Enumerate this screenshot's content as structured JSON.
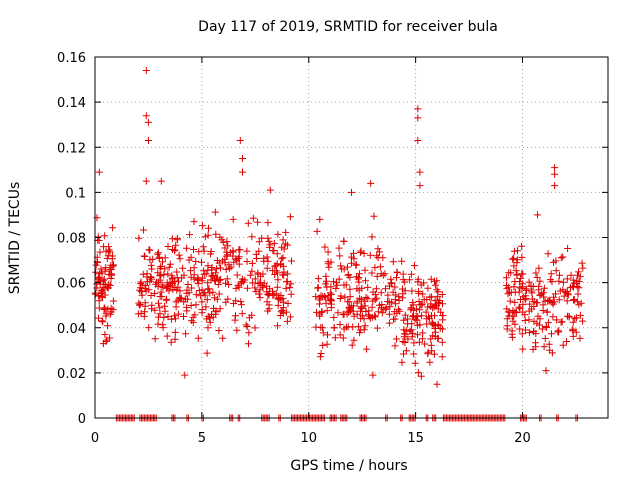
{
  "chart_data": {
    "type": "scatter",
    "title": "Day 117 of 2019, SRMTID for receiver bula",
    "xlabel": "GPS time / hours",
    "ylabel": "SRMTID / TECUs",
    "xlim": [
      0,
      24
    ],
    "ylim": [
      0,
      0.16
    ],
    "xticks": [
      0,
      5,
      10,
      15,
      20
    ],
    "yticks": [
      0,
      0.02,
      0.04,
      0.06,
      0.08,
      0.1,
      0.12,
      0.14,
      0.16
    ],
    "ytick_labels": [
      "0",
      "0.02",
      "0.04",
      "0.06",
      "0.08",
      "0.1",
      "0.12",
      "0.14",
      "0.16"
    ],
    "grid": true,
    "marker": "+",
    "series": [
      {
        "name": "SRMTID",
        "color": "#e00000",
        "clusters": [
          {
            "x_start": 0.0,
            "x_end": 0.9,
            "y_center": 0.06,
            "y_spread": 0.015,
            "count": 90
          },
          {
            "x_start": 2.0,
            "x_end": 4.5,
            "y_center": 0.058,
            "y_spread": 0.014,
            "count": 150
          },
          {
            "x_start": 4.5,
            "x_end": 9.2,
            "y_center": 0.062,
            "y_spread": 0.016,
            "count": 260
          },
          {
            "x_start": 10.3,
            "x_end": 14.0,
            "y_center": 0.055,
            "y_spread": 0.015,
            "count": 200
          },
          {
            "x_start": 14.0,
            "x_end": 16.3,
            "y_center": 0.045,
            "y_spread": 0.014,
            "count": 150
          },
          {
            "x_start": 19.2,
            "x_end": 22.9,
            "y_center": 0.052,
            "y_spread": 0.015,
            "count": 200
          }
        ],
        "peaks": [
          {
            "x": 0.2,
            "y": 0.109
          },
          {
            "x": 2.4,
            "y": 0.154
          },
          {
            "x": 2.4,
            "y": 0.134
          },
          {
            "x": 2.5,
            "y": 0.131
          },
          {
            "x": 2.5,
            "y": 0.123
          },
          {
            "x": 2.4,
            "y": 0.105
          },
          {
            "x": 3.1,
            "y": 0.105
          },
          {
            "x": 6.8,
            "y": 0.123
          },
          {
            "x": 6.9,
            "y": 0.115
          },
          {
            "x": 6.9,
            "y": 0.109
          },
          {
            "x": 8.2,
            "y": 0.101
          },
          {
            "x": 12.0,
            "y": 0.1
          },
          {
            "x": 12.9,
            "y": 0.104
          },
          {
            "x": 15.1,
            "y": 0.137
          },
          {
            "x": 15.1,
            "y": 0.133
          },
          {
            "x": 15.1,
            "y": 0.123
          },
          {
            "x": 15.2,
            "y": 0.109
          },
          {
            "x": 15.2,
            "y": 0.103
          },
          {
            "x": 21.5,
            "y": 0.111
          },
          {
            "x": 21.5,
            "y": 0.108
          },
          {
            "x": 21.5,
            "y": 0.103
          },
          {
            "x": 20.7,
            "y": 0.09
          },
          {
            "x": 4.2,
            "y": 0.019
          },
          {
            "x": 16.0,
            "y": 0.015
          },
          {
            "x": 13.0,
            "y": 0.019
          },
          {
            "x": 21.1,
            "y": 0.021
          }
        ],
        "zero_ranges": [
          [
            1.0,
            1.9
          ],
          [
            2.1,
            2.9
          ],
          [
            3.6,
            3.8
          ],
          [
            4.3,
            4.4
          ],
          [
            5.0,
            5.1
          ],
          [
            6.3,
            6.5
          ],
          [
            6.7,
            6.8
          ],
          [
            7.8,
            8.2
          ],
          [
            8.6,
            8.7
          ],
          [
            9.2,
            10.8
          ],
          [
            11.0,
            11.3
          ],
          [
            11.5,
            11.8
          ],
          [
            12.4,
            12.7
          ],
          [
            13.6,
            13.7
          ],
          [
            14.3,
            14.4
          ],
          [
            14.7,
            15.0
          ],
          [
            15.5,
            15.6
          ],
          [
            15.8,
            16.0
          ],
          [
            16.3,
            19.2
          ],
          [
            19.9,
            20.2
          ],
          [
            20.8,
            20.9
          ],
          [
            21.6,
            21.7
          ],
          [
            22.5,
            22.6
          ]
        ]
      }
    ]
  }
}
